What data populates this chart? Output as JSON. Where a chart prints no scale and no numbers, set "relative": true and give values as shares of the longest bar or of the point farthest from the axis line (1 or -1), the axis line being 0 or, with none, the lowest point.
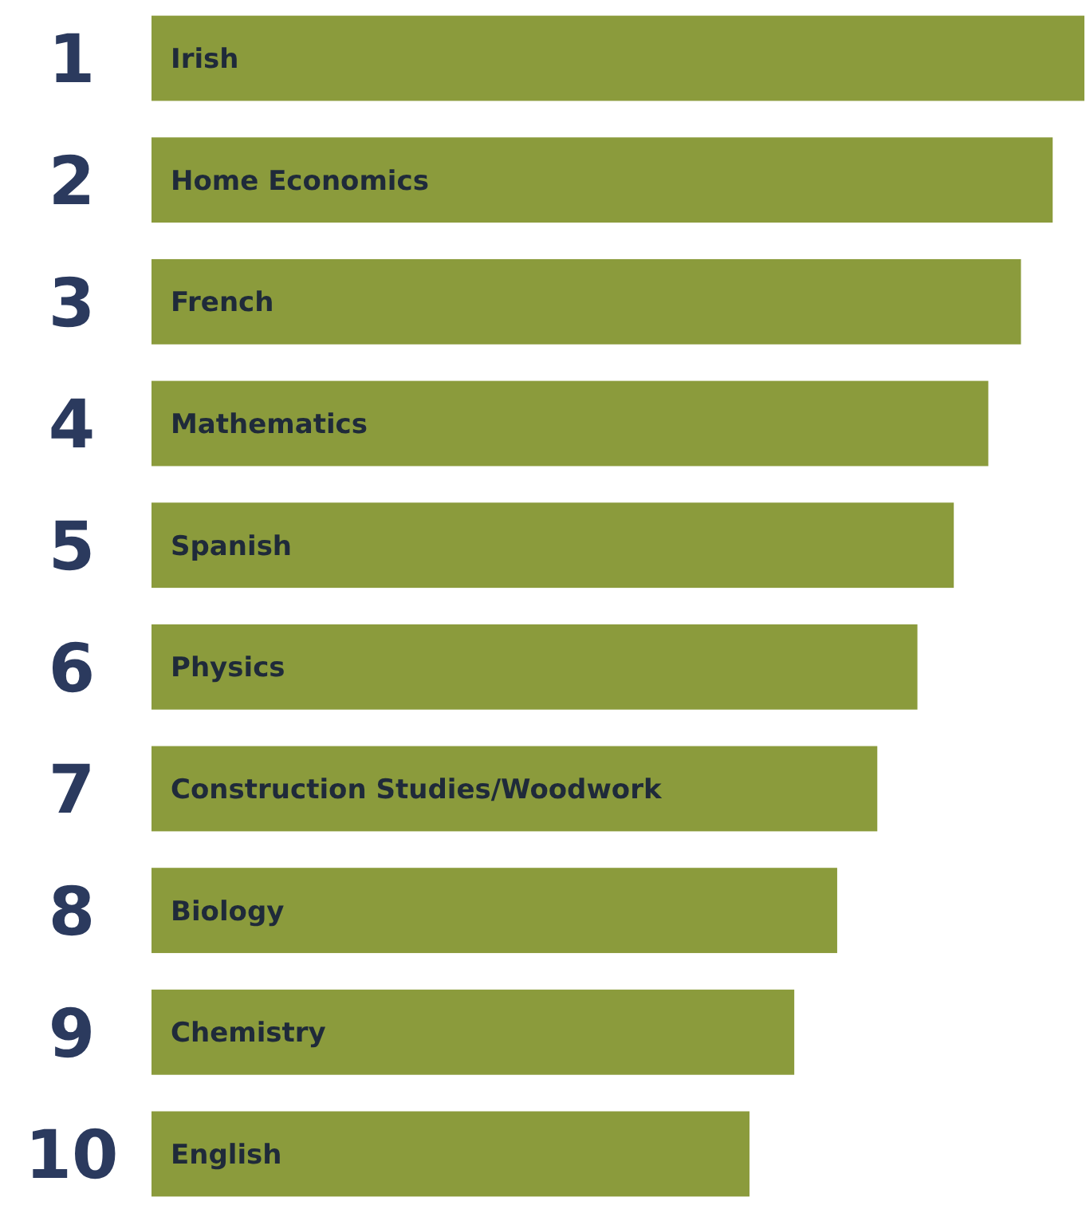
{
  "chart_data": {
    "type": "bar",
    "orientation": "horizontal",
    "relative": true,
    "categories": [
      "Irish",
      "Home Economics",
      "French",
      "Mathematics",
      "Spanish",
      "Physics",
      "Construction Studies/Woodwork",
      "Biology",
      "Chemistry",
      "English"
    ],
    "values": [
      1,
      0.966,
      0.932,
      0.897,
      0.86,
      0.821,
      0.778,
      0.735,
      0.689,
      0.641
    ],
    "color": "#8b9b3c",
    "annotations": [
      "1",
      "2",
      "3",
      "4",
      "5",
      "6",
      "7",
      "8",
      "9",
      "10"
    ]
  }
}
